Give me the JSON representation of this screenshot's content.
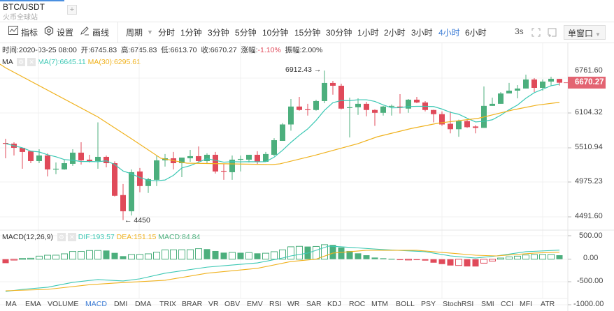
{
  "header": {
    "title": "BTC/USDT",
    "subtitle": "火币全球站",
    "add_label": "+"
  },
  "toolbar": {
    "indicators": {
      "icon": "line-chart-icon",
      "label": "指标"
    },
    "settings": {
      "icon": "gear-hexagon-icon",
      "label": "设置"
    },
    "draw": {
      "icon": "pencil-icon",
      "label": "画线"
    },
    "period_label": "周期",
    "periods": [
      "分时",
      "1分钟",
      "3分钟",
      "5分钟",
      "10分钟",
      "15分钟",
      "30分钟",
      "1小时",
      "2小时",
      "3小时",
      "4小时",
      "6小时"
    ],
    "active_period": "4小时",
    "refresh": "3s",
    "window_mode": "单窗口"
  },
  "info": {
    "time_label": "时间:",
    "time": "2020-03-25 08:00",
    "open_label": "开:",
    "open": "6745.83",
    "high_label": "高:",
    "high": "6745.83",
    "low_label": "低:",
    "low": "6613.70",
    "close_label": "收:",
    "close": "6670.27",
    "change_label": "涨幅:",
    "change": "-1.10%",
    "amp_label": "振幅:",
    "amp": "2.00%"
  },
  "ma": {
    "label": "MA",
    "ma7": "MA(7):6645.11",
    "ma30": "MA(30):6295.61"
  },
  "macd": {
    "label": "MACD(12,26,9)",
    "dif": "DIF:193.57",
    "dea": "DEA:151.15",
    "macd": "MACD:84.84"
  },
  "colors": {
    "up": "#4caf7d",
    "down": "#e04a5a",
    "ma7": "#3cc8b4",
    "ma30": "#f0b21e",
    "accent": "#3a7bd5"
  },
  "indicator_tabs": [
    "MA",
    "EMA",
    "VOLUME",
    "MACD",
    "DMI",
    "DMA",
    "TRIX",
    "BRAR",
    "VR",
    "OBV",
    "EMV",
    "RSI",
    "WR",
    "SAR",
    "KDJ",
    "ROC",
    "MTM",
    "BOLL",
    "PSY",
    "StochRSI",
    "SMI",
    "CCI",
    "MFI",
    "ATR"
  ],
  "active_indicator": "MACD",
  "chart_data": [
    {
      "type": "candlestick",
      "scale": "log",
      "price_ticks": [
        "6761.60",
        "6104.32",
        "5510.94",
        "4975.23",
        "4491.60"
      ],
      "current_price": "6670.27",
      "annotations": {
        "max": "6912.43",
        "min": "4450"
      },
      "ohlc": [
        [
          5585,
          5654,
          5339,
          5574
        ],
        [
          5574,
          5597,
          5383,
          5506
        ],
        [
          5506,
          5510,
          5177,
          5439
        ],
        [
          5450,
          5460,
          5262,
          5295
        ],
        [
          5295,
          5483,
          5262,
          5383
        ],
        [
          5383,
          5417,
          5061,
          5166
        ],
        [
          5166,
          5273,
          5094,
          5177
        ],
        [
          5166,
          5317,
          5160,
          5262
        ],
        [
          5252,
          5483,
          5220,
          5428
        ],
        [
          5428,
          5597,
          5241,
          5306
        ],
        [
          5317,
          5394,
          5273,
          5295
        ],
        [
          5295,
          5934,
          5177,
          5361
        ],
        [
          5361,
          5383,
          5198,
          5262
        ],
        [
          5262,
          5290,
          4770,
          4780
        ],
        [
          4790,
          4949,
          4450,
          4567
        ],
        [
          4567,
          5166,
          4510,
          5124
        ],
        [
          5135,
          5188,
          4830,
          4919
        ],
        [
          4919,
          5040,
          4820,
          5020
        ],
        [
          5010,
          5383,
          4919,
          5306
        ],
        [
          5306,
          5406,
          5210,
          5339
        ],
        [
          5339,
          5439,
          5166,
          5262
        ],
        [
          5262,
          5350,
          5050,
          5350
        ],
        [
          5339,
          5472,
          5284,
          5372
        ],
        [
          5372,
          5528,
          5273,
          5295
        ],
        [
          5295,
          5417,
          5262,
          5394
        ],
        [
          5394,
          5439,
          5104,
          5135
        ],
        [
          5145,
          5252,
          5010,
          5135
        ],
        [
          5124,
          5383,
          5010,
          5317
        ],
        [
          5317,
          5383,
          5135,
          5328
        ],
        [
          5317,
          5394,
          5273,
          5394
        ],
        [
          5394,
          5450,
          5241,
          5284
        ],
        [
          5284,
          5439,
          5284,
          5406
        ],
        [
          5394,
          5665,
          5372,
          5631
        ],
        [
          5620,
          5922,
          5620,
          5898
        ],
        [
          5898,
          6358,
          5792,
          6218
        ],
        [
          6218,
          6396,
          6142,
          6155
        ],
        [
          6168,
          6268,
          6055,
          6155
        ],
        [
          6155,
          6345,
          6142,
          6319
        ],
        [
          6319,
          6912.43,
          6280,
          6666
        ],
        [
          6666,
          6707,
          6440,
          6611
        ],
        [
          6611,
          6652,
          6168,
          6180
        ],
        [
          6192,
          6384,
          5676,
          6205
        ],
        [
          6205,
          6370,
          6067,
          6268
        ],
        [
          6268,
          6306,
          6042,
          6155
        ],
        [
          6155,
          6168,
          5874,
          6104
        ],
        [
          6104,
          6230,
          6055,
          6218
        ],
        [
          6218,
          6255,
          6055,
          6230
        ],
        [
          6218,
          6449,
          6092,
          6205
        ],
        [
          6180,
          6358,
          6104,
          6345
        ],
        [
          6345,
          6396,
          6280,
          6293
        ],
        [
          6293,
          6319,
          6130,
          6155
        ],
        [
          6155,
          6160,
          5934,
          6080
        ],
        [
          6080,
          6130,
          5874,
          5898
        ],
        [
          5910,
          6130,
          5745,
          5816
        ],
        [
          5816,
          5982,
          5688,
          5958
        ],
        [
          5958,
          5982,
          5839,
          5851
        ],
        [
          5863,
          5886,
          5745,
          5839
        ],
        [
          5839,
          6597,
          5839,
          6230
        ],
        [
          6230,
          6384,
          6230,
          6268
        ],
        [
          6268,
          6488,
          6268,
          6462
        ],
        [
          6462,
          6666,
          6462,
          6516
        ],
        [
          6516,
          6624,
          6370,
          6557
        ],
        [
          6557,
          6830,
          6557,
          6734
        ],
        [
          6734,
          6762,
          6490,
          6570
        ],
        [
          6570,
          6734,
          6516,
          6693
        ],
        [
          6693,
          6790,
          6611,
          6748
        ],
        [
          6745.83,
          6745.83,
          6613.7,
          6670.27
        ]
      ],
      "ma30": [
        [
          0,
          6970
        ],
        [
          11,
          6030
        ],
        [
          15,
          5654
        ],
        [
          18.5,
          5339
        ],
        [
          21.6,
          5262
        ],
        [
          31.8,
          5241
        ],
        [
          32.7,
          5252
        ],
        [
          36.8,
          5383
        ],
        [
          42,
          5574
        ],
        [
          44.3,
          5688
        ],
        [
          48.3,
          5827
        ],
        [
          51.6,
          5922
        ],
        [
          56.3,
          6005
        ],
        [
          57.7,
          6055
        ],
        [
          60.4,
          6155
        ],
        [
          63.3,
          6243
        ],
        [
          66,
          6295.61
        ]
      ]
    },
    {
      "type": "macd",
      "y_ticks": [
        "500.00",
        "0.00",
        "-500.00",
        "-1000.00"
      ],
      "histogram": [
        -85,
        -20,
        15,
        20,
        65,
        85,
        86,
        115,
        165,
        166,
        185,
        186,
        185,
        135,
        65,
        100,
        101,
        115,
        150,
        200,
        201,
        202,
        203,
        225,
        215,
        175,
        140,
        145,
        138,
        142,
        125,
        128,
        160,
        200,
        265,
        275,
        270,
        272,
        310,
        305,
        250,
        175,
        125,
        85,
        35,
        20,
        10,
        -20,
        -15,
        -20,
        -30,
        -75,
        -105,
        -135,
        -134,
        -155,
        -156,
        -85,
        -40,
        25,
        50,
        65,
        90,
        100,
        101,
        102,
        84.84
      ],
      "dif": [
        [
          0,
          -690
        ],
        [
          2,
          -645
        ],
        [
          5,
          -600
        ],
        [
          8,
          -495
        ],
        [
          11,
          -435
        ],
        [
          14,
          -465
        ],
        [
          16,
          -420
        ],
        [
          19,
          -300
        ],
        [
          24,
          -170
        ],
        [
          27,
          -125
        ],
        [
          30,
          -80
        ],
        [
          33,
          25
        ],
        [
          34,
          70
        ],
        [
          36,
          130
        ],
        [
          38.5,
          280
        ],
        [
          40,
          265
        ],
        [
          45,
          205
        ],
        [
          50,
          160
        ],
        [
          53,
          70
        ],
        [
          56,
          25
        ],
        [
          58.5,
          70
        ],
        [
          62,
          160
        ],
        [
          66,
          193.57
        ]
      ],
      "dea": [
        [
          0,
          -675
        ],
        [
          5,
          -645
        ],
        [
          10,
          -545
        ],
        [
          13,
          -510
        ],
        [
          19,
          -450
        ],
        [
          24,
          -300
        ],
        [
          30,
          -195
        ],
        [
          34,
          -50
        ],
        [
          37,
          0
        ],
        [
          39,
          130
        ],
        [
          43,
          190
        ],
        [
          49,
          190
        ],
        [
          53,
          130
        ],
        [
          56,
          85
        ],
        [
          58.5,
          70
        ],
        [
          63,
          130
        ],
        [
          66,
          151.15
        ]
      ]
    }
  ]
}
